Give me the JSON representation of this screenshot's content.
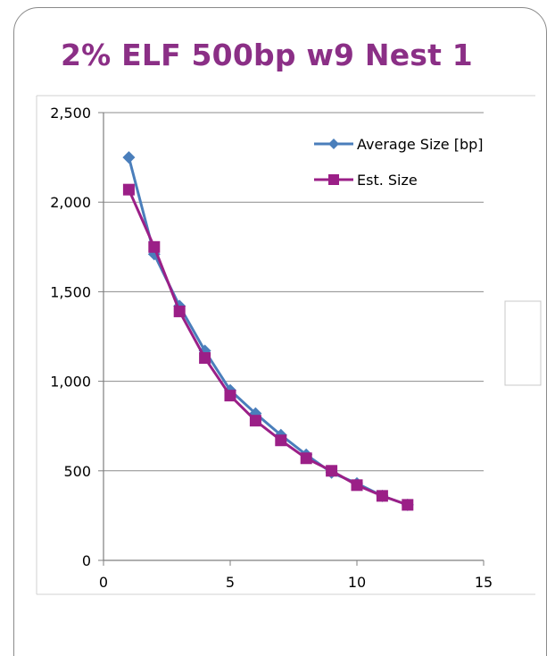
{
  "slide": {
    "title": "2% ELF 500bp w9 Nest 1"
  },
  "colors": {
    "title": "#8b2f86",
    "series_average": "#4a7ebb",
    "series_est": "#9b1f87",
    "gridline": "#8c8c8c",
    "axis_text": "#000000",
    "frame_border": "#8a8a8a"
  },
  "chart_data": {
    "type": "line",
    "title": "",
    "xlabel": "",
    "ylabel": "",
    "xlim": [
      0,
      15
    ],
    "ylim": [
      0,
      2500
    ],
    "x_ticks": [
      0,
      5,
      10,
      15
    ],
    "x_tick_labels": [
      "0",
      "5",
      "10",
      "15"
    ],
    "y_ticks": [
      0,
      500,
      1000,
      1500,
      2000,
      2500
    ],
    "y_tick_labels": [
      "0",
      "500",
      "1,000",
      "1,500",
      "2,000",
      "2,500"
    ],
    "grid": "horizontal major gridlines",
    "legend_position": "top-right",
    "series": [
      {
        "name": "Average Size [bp]",
        "marker": "diamond",
        "color": "#4a7ebb",
        "x": [
          1,
          2,
          3,
          4,
          5,
          6,
          7,
          8,
          9,
          10,
          11,
          12
        ],
        "y": [
          2250,
          1710,
          1420,
          1170,
          950,
          820,
          700,
          590,
          490,
          430,
          360,
          310
        ]
      },
      {
        "name": "Est. Size",
        "marker": "square",
        "color": "#9b1f87",
        "x": [
          1,
          2,
          3,
          4,
          5,
          6,
          7,
          8,
          9,
          10,
          11,
          12
        ],
        "y": [
          2070,
          1750,
          1390,
          1130,
          920,
          780,
          670,
          570,
          500,
          420,
          360,
          310
        ]
      }
    ]
  }
}
